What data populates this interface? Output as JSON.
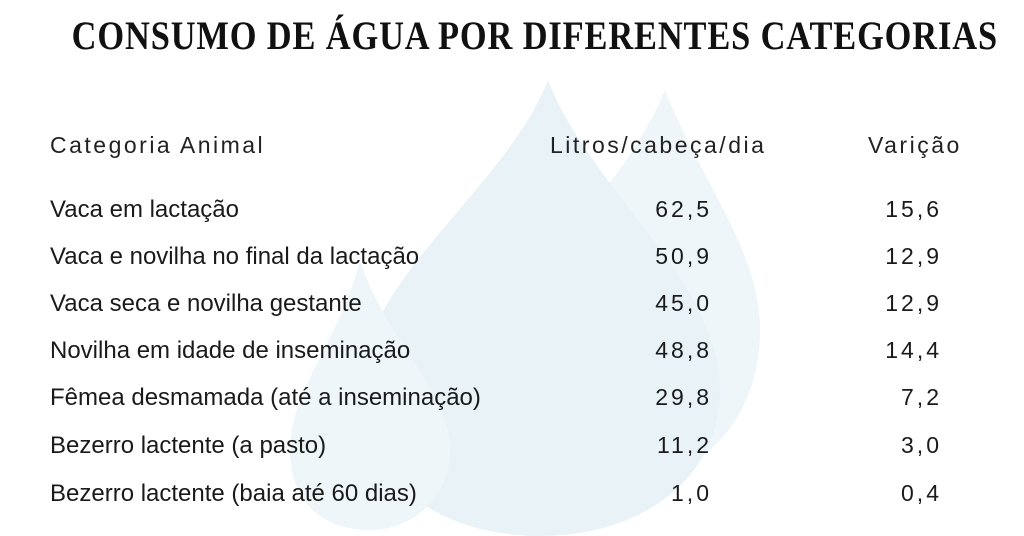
{
  "title": "CONSUMO DE ÁGUA POR DIFERENTES CATEGORIAS",
  "colors": {
    "drop": "#e9f3f7",
    "text": "#1a1a1a"
  },
  "headers": {
    "category": "Categoria Animal",
    "litros": "Litros/cabeça/dia",
    "variacao": "Varição"
  },
  "rows": [
    {
      "category": "Vaca em lactação",
      "litros": "62,5",
      "variacao": "15,6"
    },
    {
      "category": "Vaca e novilha no final da lactação",
      "litros": "50,9",
      "variacao": "12,9"
    },
    {
      "category": "Vaca seca e novilha gestante",
      "litros": "45,0",
      "variacao": "12,9"
    },
    {
      "category": "Novilha em idade de inseminação",
      "litros": "48,8",
      "variacao": "14,4"
    },
    {
      "category": "Fêmea desmamada (até a inseminação)",
      "litros": "29,8",
      "variacao": "7,2"
    },
    {
      "category": "Bezerro lactente (a pasto)",
      "litros": "11,2",
      "variacao": "3,0"
    },
    {
      "category": "Bezerro lactente (baia até 60 dias)",
      "litros": "1,0",
      "variacao": "0,4"
    }
  ]
}
